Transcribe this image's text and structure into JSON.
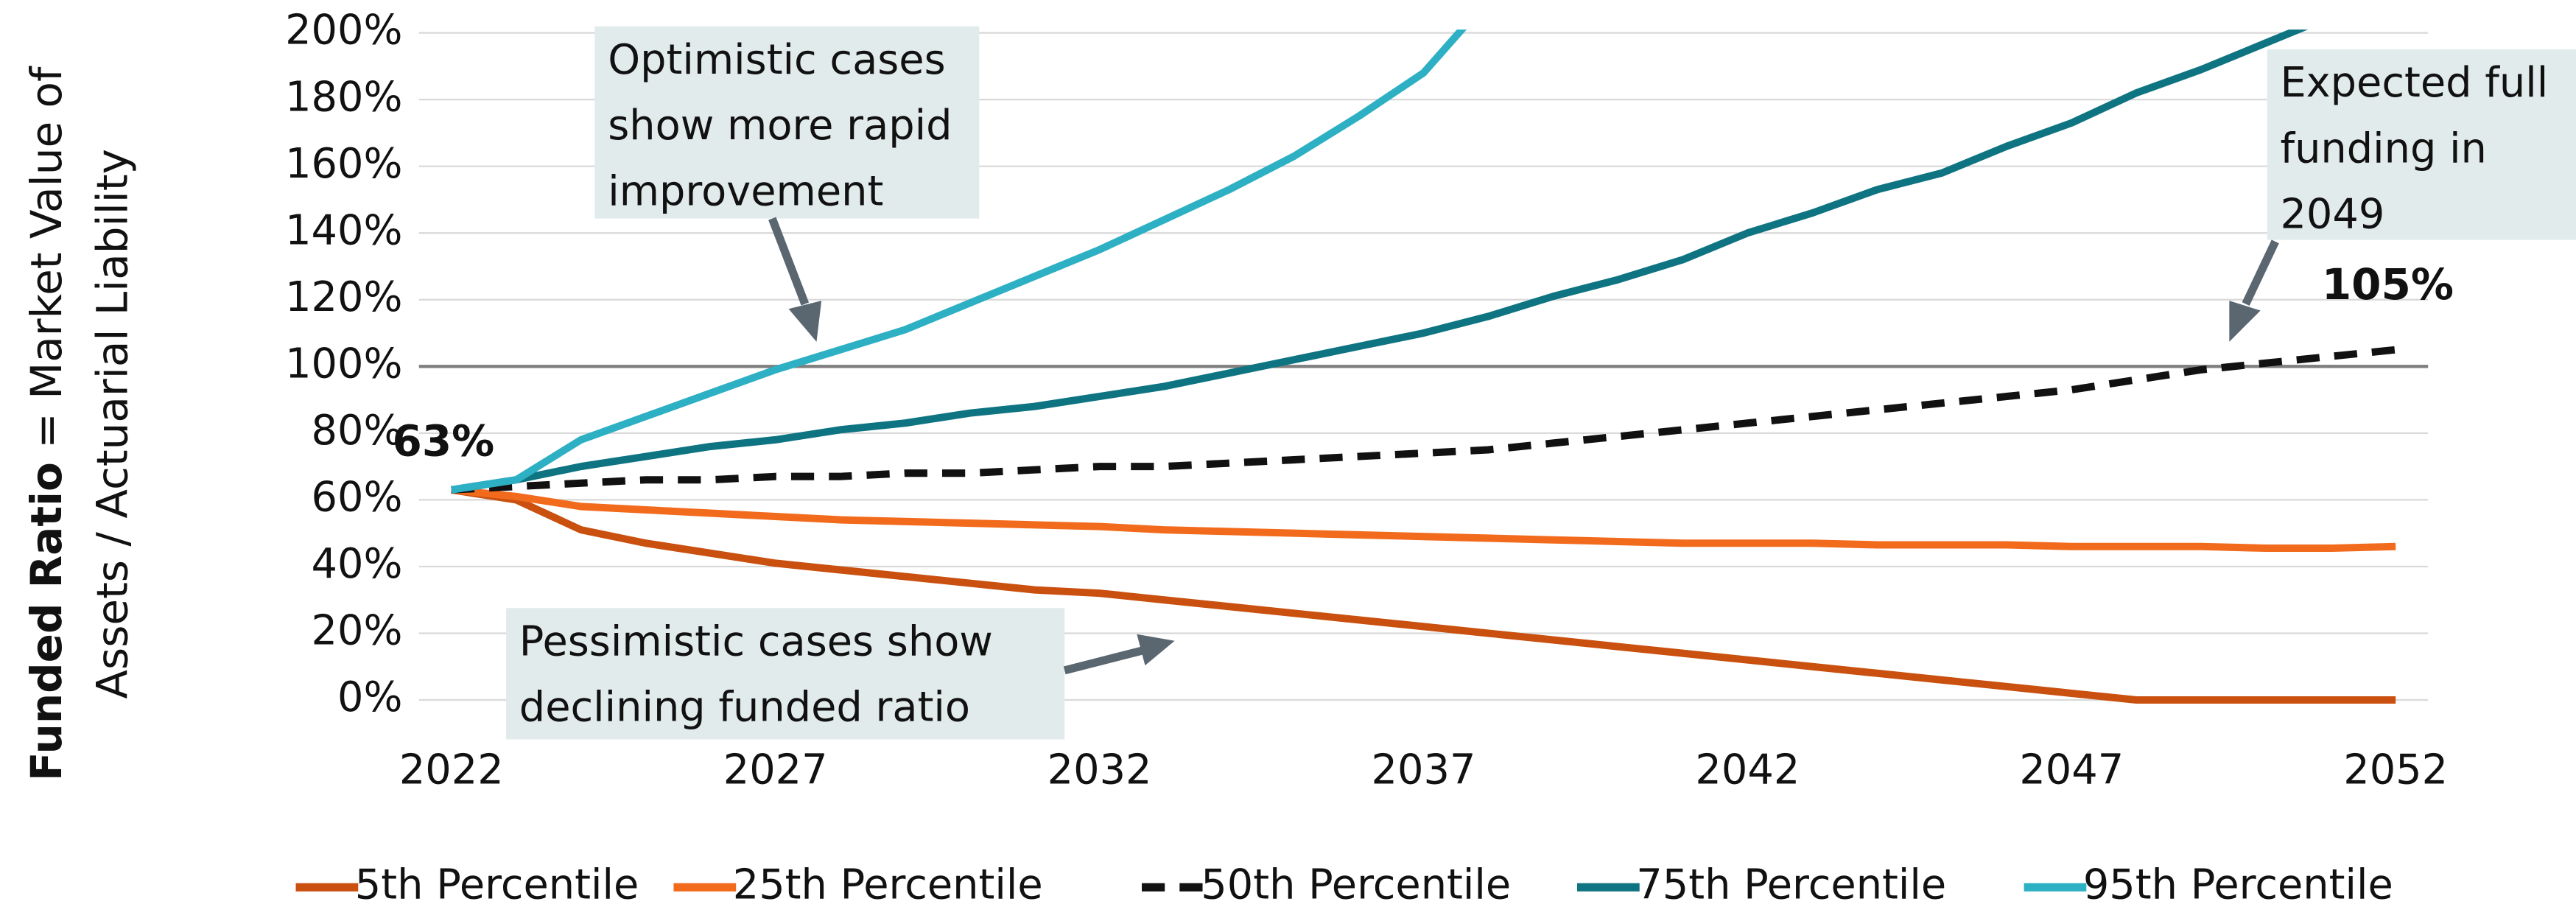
{
  "chart_data": {
    "type": "line",
    "ylabel": [
      "Funded Ratio",
      " = Market Value of",
      "Assets / Actuarial Liability"
    ],
    "x": [
      2022,
      2023,
      2024,
      2025,
      2026,
      2027,
      2028,
      2029,
      2030,
      2031,
      2032,
      2033,
      2034,
      2035,
      2036,
      2037,
      2038,
      2039,
      2040,
      2041,
      2042,
      2043,
      2044,
      2045,
      2046,
      2047,
      2048,
      2049,
      2050,
      2051,
      2052
    ],
    "xlim": [
      2021.5,
      2052.5
    ],
    "xticks": [
      2022,
      2027,
      2032,
      2037,
      2042,
      2047,
      2052
    ],
    "ylim": [
      0,
      200
    ],
    "yticks": [
      {
        "value": 0,
        "label": "0%"
      },
      {
        "value": 20,
        "label": "20%"
      },
      {
        "value": 40,
        "label": "40%"
      },
      {
        "value": 60,
        "label": "60%"
      },
      {
        "value": 80,
        "label": "80%"
      },
      {
        "value": 100,
        "label": "100%"
      },
      {
        "value": 120,
        "label": "120%"
      },
      {
        "value": 140,
        "label": "140%"
      },
      {
        "value": 160,
        "label": "160%"
      },
      {
        "value": 180,
        "label": "180%"
      },
      {
        "value": 200,
        "label": "200%"
      }
    ],
    "grid": true,
    "reference_line": {
      "value": 100,
      "color": "#7f7f7f"
    },
    "legend": "bottom",
    "series": [
      {
        "name": "5th Percentile",
        "color": "#c9500f",
        "values": [
          63,
          60,
          51,
          47,
          44,
          41,
          39,
          37,
          35,
          33,
          32,
          30,
          28,
          26,
          24,
          22,
          20,
          18,
          16,
          14,
          12,
          10,
          8,
          6,
          4,
          2,
          0,
          0,
          0,
          0,
          0
        ]
      },
      {
        "name": "25th Percentile",
        "color": "#f26b1d",
        "values": [
          63,
          61,
          58,
          57,
          56,
          55,
          54,
          53.5,
          53,
          52.5,
          52,
          51,
          50.5,
          50,
          49.5,
          49,
          48.5,
          48,
          47.5,
          47,
          47,
          47,
          46.5,
          46.5,
          46.5,
          46,
          46,
          46,
          45.5,
          45.5,
          46
        ]
      },
      {
        "name": "50th Percentile",
        "color": "#111111",
        "dash": true,
        "values": [
          63,
          64,
          65,
          66,
          66,
          67,
          67,
          68,
          68,
          69,
          70,
          70,
          71,
          72,
          73,
          74,
          75,
          77,
          79,
          81,
          83,
          85,
          87,
          89,
          91,
          93,
          96,
          99,
          101,
          103,
          105
        ],
        "value_labels": [
          "63%",
          null,
          null,
          null,
          null,
          null,
          null,
          null,
          null,
          null,
          null,
          null,
          null,
          null,
          null,
          null,
          null,
          null,
          null,
          null,
          null,
          null,
          null,
          null,
          null,
          null,
          null,
          null,
          null,
          null,
          "105%"
        ]
      },
      {
        "name": "75th Percentile",
        "color": "#0f7482",
        "values": [
          63,
          66,
          70,
          73,
          76,
          78,
          81,
          83,
          86,
          88,
          91,
          94,
          98,
          102,
          106,
          110,
          115,
          121,
          126,
          132,
          140,
          146,
          153,
          158,
          166,
          173,
          182,
          189,
          197,
          205,
          212
        ]
      },
      {
        "name": "95th Percentile",
        "color": "#2eb0c4",
        "values": [
          63,
          66,
          78,
          85,
          92,
          99,
          105,
          111,
          119,
          127,
          135,
          144,
          153,
          163,
          175,
          188,
          210,
          null,
          null,
          null,
          null,
          null,
          null,
          null,
          null,
          null,
          null,
          null,
          null,
          null,
          null
        ]
      }
    ],
    "annotations": [
      {
        "lines": [
          "Optimistic cases",
          "show more rapid",
          "improvement"
        ]
      },
      {
        "lines": [
          "Expected full",
          "funding in",
          "2049"
        ]
      },
      {
        "lines": [
          "Pessimistic cases show",
          "declining funded ratio"
        ]
      }
    ]
  }
}
